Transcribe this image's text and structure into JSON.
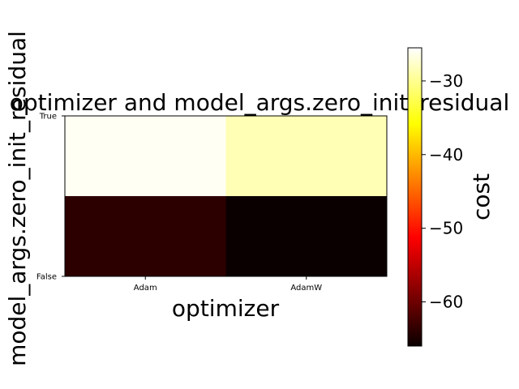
{
  "chart_data": {
    "type": "heatmap",
    "title": "optimizer and model_args.zero_init_residual",
    "xlabel": "optimizer",
    "ylabel": "model_args.zero_init_residual",
    "x_categories": [
      "Adam",
      "AdamW"
    ],
    "y_categories": [
      "True",
      "False"
    ],
    "values": [
      [
        -26.0,
        -28.5
      ],
      [
        -64.0,
        -66.0
      ]
    ],
    "colormap": "hot",
    "colorbar": {
      "label": "cost",
      "range": [
        -66.0,
        -25.5
      ],
      "ticks": [
        -60,
        -50,
        -40,
        -30
      ],
      "tick_labels": [
        "−60",
        "−50",
        "−40",
        "−30"
      ]
    }
  }
}
